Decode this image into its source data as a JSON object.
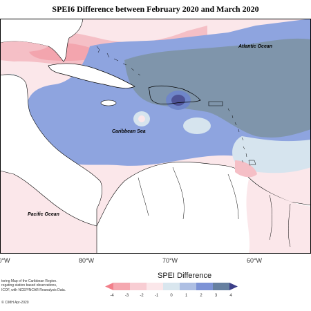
{
  "title": "SPEI6 Difference between February 2020 and March 2020",
  "map_labels": {
    "atlantic": "Atlantic Ocean",
    "caribbean": "Caribbean Sea",
    "pacific": "Pacific Ocean"
  },
  "longitude_ticks": [
    "0°W",
    "80°W",
    "70°W",
    "60°W"
  ],
  "credit_lines": [
    "toring Map of the Caribbean Region.",
    "regating station based observations,",
    "ICOF, with NCEP/NCAR Reanalysis Data."
  ],
  "copyright": "© CIMH Apr-2020",
  "legend": {
    "title": "SPEI Difference",
    "ticks": [
      "-4",
      "-3",
      "-2",
      "-1",
      "0",
      "1",
      "2",
      "3",
      "4"
    ],
    "colors": [
      "#f27f8a",
      "#f5a8b0",
      "#f8cdd3",
      "#fbe7ea",
      "#d9e6ee",
      "#aebfe3",
      "#7d93d6",
      "#6680a0",
      "#3c3f88"
    ]
  },
  "colors": {
    "land": "#ffffff",
    "coast": "#000000",
    "pink_light": "#fbe7ea",
    "pink_mid": "#f5bfc6",
    "pink_strong": "#f18c96",
    "blue_light": "#d6e4ee",
    "blue_mid": "#8ea4df",
    "blue_strong": "#6f86c9",
    "slate": "#7f95ab",
    "navy": "#4e5396"
  }
}
